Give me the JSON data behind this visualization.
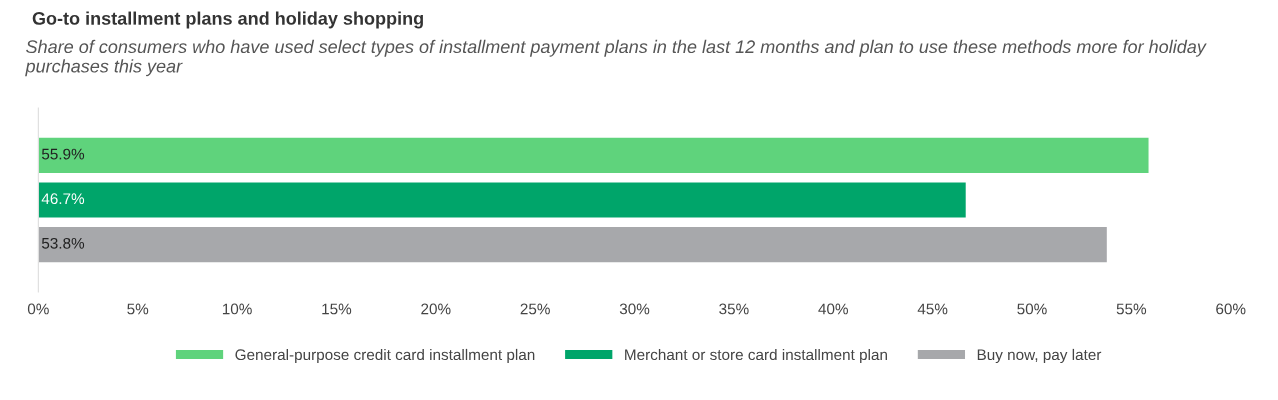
{
  "chart_data": {
    "type": "bar",
    "orientation": "horizontal",
    "title": "Go-to installment plans and holiday shopping",
    "subtitle": "Share of consumers who have used select types of installment payment plans in the last 12 months and plan to use these methods more for holiday purchases this year",
    "categories": [
      null
    ],
    "series": [
      {
        "name": "General-purpose credit card installment plan",
        "color": "#5fd37c",
        "values": [
          55.9
        ]
      },
      {
        "name": "Merchant or store card installment plan",
        "color": "#00a56a",
        "values": [
          46.7
        ]
      },
      {
        "name": "Buy now, pay later",
        "color": "#a7a8ab",
        "values": [
          53.8
        ]
      }
    ],
    "xlim": [
      0,
      60
    ],
    "xticks": [
      {
        "value": 0,
        "label": "0%"
      },
      {
        "value": 5,
        "label": "5%"
      },
      {
        "value": 10,
        "label": "10%"
      },
      {
        "value": 15,
        "label": "15%"
      },
      {
        "value": 20,
        "label": "20%"
      },
      {
        "value": 25,
        "label": "25%"
      },
      {
        "value": 30,
        "label": "30%"
      },
      {
        "value": 35,
        "label": "35%"
      },
      {
        "value": 40,
        "label": "40%"
      },
      {
        "value": 45,
        "label": "45%"
      },
      {
        "value": 50,
        "label": "50%"
      },
      {
        "value": 55,
        "label": "55%"
      },
      {
        "value": 60,
        "label": "60%"
      }
    ],
    "value_labels": [
      "55.9%",
      "46.7%",
      "53.8%"
    ],
    "grid": false,
    "legend": "bottom"
  }
}
